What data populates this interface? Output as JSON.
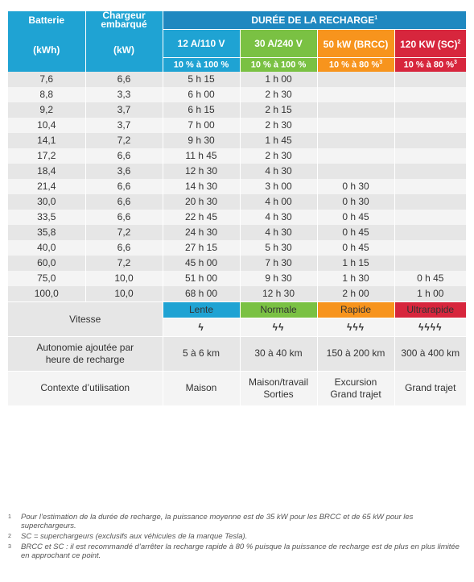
{
  "header": {
    "batterie": "Batterie",
    "chargeur": "Chargeur embarqué",
    "kwh": "(kWh)",
    "kw": "(kW)",
    "duree_title": "DURÉE DE LA RECHARGE",
    "duree_sup": "1",
    "cols": [
      {
        "name": "12 A/110 V",
        "sup": "",
        "range": "10 % à 100 %",
        "range_sup": ""
      },
      {
        "name": "30 A/240 V",
        "sup": "",
        "range": "10 % à 100 %",
        "range_sup": ""
      },
      {
        "name": "50 kW (BRCC)",
        "sup": "",
        "range": "10 % à 80 %",
        "range_sup": "3"
      },
      {
        "name": "120 KW (SC)",
        "sup": "2",
        "range": "10 % à 80 %",
        "range_sup": "3"
      }
    ]
  },
  "rows": [
    [
      "7,6",
      "6,6",
      "5 h 15",
      "1 h 00",
      "",
      ""
    ],
    [
      "8,8",
      "3,3",
      "6 h 00",
      "2 h 30",
      "",
      ""
    ],
    [
      "9,2",
      "3,7",
      "6 h 15",
      "2 h 15",
      "",
      ""
    ],
    [
      "10,4",
      "3,7",
      "7 h 00",
      "2 h 30",
      "",
      ""
    ],
    [
      "14,1",
      "7,2",
      "9 h 30",
      "1 h 45",
      "",
      ""
    ],
    [
      "17,2",
      "6,6",
      "11 h 45",
      "2 h 30",
      "",
      ""
    ],
    [
      "18,4",
      "3,6",
      "12 h 30",
      "4 h 30",
      "",
      ""
    ],
    [
      "21,4",
      "6,6",
      "14 h 30",
      "3 h 00",
      "0 h 30",
      ""
    ],
    [
      "30,0",
      "6,6",
      "20 h 30",
      "4 h 00",
      "0 h 30",
      ""
    ],
    [
      "33,5",
      "6,6",
      "22 h 45",
      "4 h 30",
      "0 h 45",
      ""
    ],
    [
      "35,8",
      "7,2",
      "24 h 30",
      "4 h 30",
      "0 h 45",
      ""
    ],
    [
      "40,0",
      "6,6",
      "27 h 15",
      "5 h 30",
      "0 h 45",
      ""
    ],
    [
      "60,0",
      "7,2",
      "45 h 00",
      "7 h 30",
      "1 h 15",
      ""
    ],
    [
      "75,0",
      "10,0",
      "51 h 00",
      "9 h 30",
      "1 h 30",
      "0 h 45"
    ],
    [
      "100,0",
      "10,0",
      "68 h 00",
      "12 h 30",
      "2 h 00",
      "1 h 00"
    ]
  ],
  "vitesse": {
    "label": "Vitesse",
    "levels": [
      "Lente",
      "Normale",
      "Rapide",
      "Ultrarapide"
    ],
    "bolts": [
      "ϟ",
      "ϟϟ",
      "ϟϟϟ",
      "ϟϟϟϟ"
    ],
    "icon_names": [
      "lightning-icon",
      "lightning-icon",
      "lightning-icon",
      "lightning-icon"
    ]
  },
  "autonomie": {
    "label": "Autonomie ajoutée par heure de recharge",
    "values": [
      "5 à 6 km",
      "30 à 40 km",
      "150 à 200 km",
      "300 à 400 km"
    ]
  },
  "contexte": {
    "label": "Contexte d’utilisation",
    "values": [
      "Maison",
      "Maison/travail Sorties",
      "Excursion Grand trajet",
      "Grand trajet"
    ]
  },
  "notes": [
    {
      "num": "1",
      "text": "Pour l’estimation de la durée de recharge, la puissance moyenne est de 35 kW pour les BRCC et de 65 kW pour les superchargeurs."
    },
    {
      "num": "2",
      "text": "SC = superchargeurs (exclusifs aux véhicules de la marque Tesla)."
    },
    {
      "num": "3",
      "text": "BRCC et SC : il est recommandé d’arrêter la recharge rapide à 80 % puisque la puissance de recharge est de plus en plus limitée en approchant ce point."
    }
  ],
  "colors": {
    "lente": "#1fa3d3",
    "normale": "#7ac143",
    "rapide": "#f7941d",
    "ultra": "#d7263d",
    "header_dark": "#1f88c0"
  }
}
